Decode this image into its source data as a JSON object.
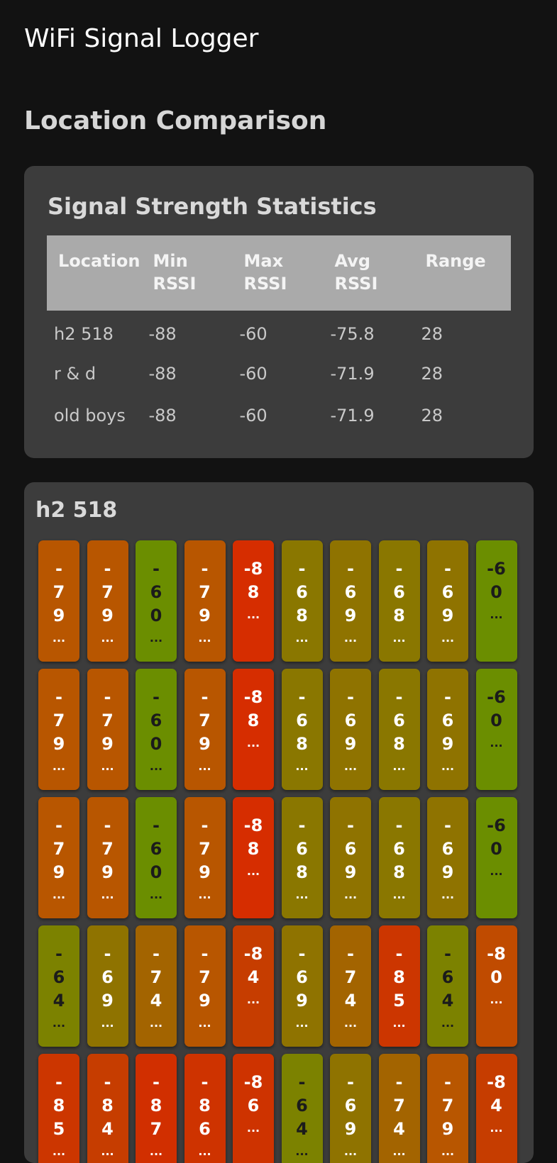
{
  "app": {
    "title": "WiFi Signal Logger"
  },
  "section": {
    "title": "Location Comparison"
  },
  "stats": {
    "title": "Signal Strength Statistics",
    "columns": [
      [
        "Location"
      ],
      [
        "Min",
        "RSSI"
      ],
      [
        "Max",
        "RSSI"
      ],
      [
        "Avg",
        "RSSI"
      ],
      [
        "Range"
      ]
    ],
    "rows": [
      [
        "h2 518",
        "-88",
        "-60",
        "-75.8",
        "28"
      ],
      [
        "r & d",
        "-88",
        "-60",
        "-71.9",
        "28"
      ],
      [
        "old boys",
        "-88",
        "-60",
        "-71.9",
        "28"
      ]
    ]
  },
  "location_card": {
    "title": "h2 518",
    "ellipsis": "...",
    "colors": {
      "-60": "#6b8e00",
      "-64": "#7c8200",
      "-68": "#8a7700",
      "-69": "#8f7300",
      "-74": "#a36400",
      "-79": "#b85600",
      "-80": "#c04b00",
      "-84": "#c63d00",
      "-85": "#cc3600",
      "-86": "#ce3300",
      "-87": "#d12f00",
      "-88": "#d62d00"
    },
    "dark_text_values": [
      "-60",
      "-64"
    ],
    "tiles": [
      "-79",
      "-79",
      "-60",
      "-79",
      "-88",
      "-68",
      "-69",
      "-68",
      "-69",
      "-60",
      "-79",
      "-79",
      "-60",
      "-79",
      "-88",
      "-68",
      "-69",
      "-68",
      "-69",
      "-60",
      "-79",
      "-79",
      "-60",
      "-79",
      "-88",
      "-68",
      "-69",
      "-68",
      "-69",
      "-60",
      "-64",
      "-69",
      "-74",
      "-79",
      "-84",
      "-69",
      "-74",
      "-85",
      "-64",
      "-80",
      "-85",
      "-84",
      "-87",
      "-86",
      "-86",
      "-64",
      "-69",
      "-74",
      "-79",
      "-84"
    ],
    "narrow_split": [
      [
        "-",
        "7",
        "9"
      ],
      [
        "-",
        "7",
        "9"
      ],
      [
        "-",
        "6",
        "0"
      ],
      [
        "-",
        "7",
        "9"
      ],
      [
        "-8",
        "8"
      ],
      [
        "-",
        "6",
        "8"
      ],
      [
        "-",
        "6",
        "9"
      ],
      [
        "-",
        "6",
        "8"
      ],
      [
        "-",
        "6",
        "9"
      ],
      [
        "-6",
        "0"
      ],
      [
        "-",
        "7",
        "9"
      ],
      [
        "-",
        "7",
        "9"
      ],
      [
        "-",
        "6",
        "0"
      ],
      [
        "-",
        "7",
        "9"
      ],
      [
        "-8",
        "8"
      ],
      [
        "-",
        "6",
        "8"
      ],
      [
        "-",
        "6",
        "9"
      ],
      [
        "-",
        "6",
        "8"
      ],
      [
        "-",
        "6",
        "9"
      ],
      [
        "-6",
        "0"
      ],
      [
        "-",
        "7",
        "9"
      ],
      [
        "-",
        "7",
        "9"
      ],
      [
        "-",
        "6",
        "0"
      ],
      [
        "-",
        "7",
        "9"
      ],
      [
        "-8",
        "8"
      ],
      [
        "-",
        "6",
        "8"
      ],
      [
        "-",
        "6",
        "9"
      ],
      [
        "-",
        "6",
        "8"
      ],
      [
        "-",
        "6",
        "9"
      ],
      [
        "-6",
        "0"
      ],
      [
        "-",
        "6",
        "4"
      ],
      [
        "-",
        "6",
        "9"
      ],
      [
        "-",
        "7",
        "4"
      ],
      [
        "-",
        "7",
        "9"
      ],
      [
        "-8",
        "4"
      ],
      [
        "-",
        "6",
        "9"
      ],
      [
        "-",
        "7",
        "4"
      ],
      [
        "-",
        "8",
        "5"
      ],
      [
        "-",
        "6",
        "4"
      ],
      [
        "-8",
        "0"
      ],
      [
        "-",
        "8",
        "5"
      ],
      [
        "-",
        "8",
        "4"
      ],
      [
        "-",
        "8",
        "7"
      ],
      [
        "-",
        "8",
        "6"
      ],
      [
        "-8",
        "6"
      ],
      [
        "-",
        "6",
        "4"
      ],
      [
        "-",
        "6",
        "9"
      ],
      [
        "-",
        "7",
        "4"
      ],
      [
        "-",
        "7",
        "9"
      ],
      [
        "-8",
        "4"
      ]
    ]
  }
}
